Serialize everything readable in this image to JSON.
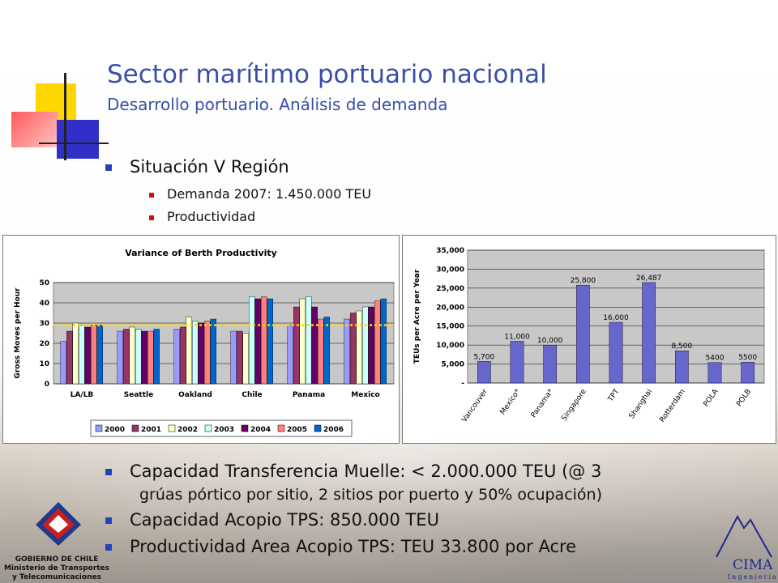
{
  "header": {
    "title": "Sector marítimo portuario nacional",
    "subtitle": "Desarrollo portuario. Análisis de demanda"
  },
  "bullets": {
    "main": "Situación V Región",
    "sub": [
      "Demanda 2007: 1.450.000 TEU",
      "Productividad"
    ]
  },
  "lower_bullets": {
    "items": [
      "Capacidad Transferencia Muelle: < 2.000.000 TEU (@ 3",
      "grúas pórtico por sitio, 2 sitios por puerto y 50% ocupación)",
      "Capacidad Acopio TPS: 850.000 TEU",
      "Productividad Area Acopio TPS: TEU 33.800 por Acre"
    ]
  },
  "footer": {
    "gov_lines": [
      "GOBIERNO DE CHILE",
      "Ministerio de Transportes",
      "y Telecomunicaciones"
    ],
    "cima": "CIMA",
    "cima_sub": "Ingeniería"
  },
  "colors": {
    "title": "#3a4ea8",
    "bullet": "#2343b8",
    "subbullet": "#cc1111"
  },
  "chart_data": [
    {
      "type": "bar",
      "title": "Variance of Berth Productivity",
      "ylabel": "Gross Moves per Hour",
      "xlabel": "",
      "ylim": [
        0,
        50
      ],
      "yticks": [
        0,
        10,
        20,
        30,
        40,
        50
      ],
      "categories": [
        "LA/LB",
        "Seattle",
        "Oakland",
        "Chile",
        "Panama",
        "Mexico"
      ],
      "reference_line": 29,
      "series": [
        {
          "name": "2000",
          "color": "#9999ff",
          "values": [
            21,
            26,
            27,
            26,
            29,
            32
          ]
        },
        {
          "name": "2001",
          "color": "#993366",
          "values": [
            26,
            27,
            28,
            26,
            38,
            35
          ]
        },
        {
          "name": "2002",
          "color": "#ffffcc",
          "values": [
            30,
            28,
            33,
            25,
            42,
            36
          ]
        },
        {
          "name": "2003",
          "color": "#ccffff",
          "values": [
            29,
            27,
            31,
            43,
            43,
            38
          ]
        },
        {
          "name": "2004",
          "color": "#660066",
          "values": [
            28,
            26,
            30,
            42,
            38,
            38
          ]
        },
        {
          "name": "2005",
          "color": "#ff8080",
          "values": [
            29,
            26,
            31,
            43,
            32,
            41
          ]
        },
        {
          "name": "2006",
          "color": "#0066cc",
          "values": [
            29,
            27,
            32,
            42,
            33,
            42
          ]
        }
      ],
      "legend_position": "bottom"
    },
    {
      "type": "bar",
      "ylabel": "TEUs per Acre per Year",
      "xlabel": "",
      "ylim": [
        0,
        35000
      ],
      "yticks": [
        "-",
        "5,000",
        "10,000",
        "15,000",
        "20,000",
        "25,000",
        "30,000",
        "35,000"
      ],
      "categories": [
        "Vancouver",
        "Mexico*",
        "Panama*",
        "Singapore",
        "TPT",
        "Shanghai",
        "Rotterdam",
        "POLA",
        "POLB"
      ],
      "values": [
        5700,
        11000,
        10000,
        25800,
        16000,
        26487,
        8500,
        5400,
        5500
      ],
      "data_labels": [
        "5,700",
        "11,000",
        "10,000",
        "25,800",
        "16,000",
        "26,487",
        "8,500",
        "5400",
        "5500"
      ],
      "color": "#6666cc"
    }
  ]
}
